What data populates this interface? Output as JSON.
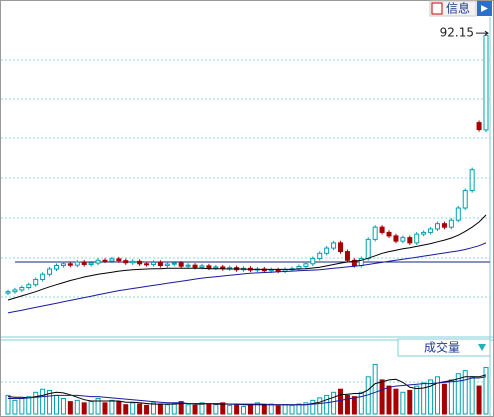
{
  "chart_data": {
    "type": "candlestick",
    "info_label": "信息",
    "volume_label": "成交量",
    "ylim": [
      5,
      96.5
    ],
    "up_color": "#00a0b0",
    "down_color": "#a80000",
    "reference_line": 26.5,
    "reference_color": "#1a237e",
    "open": [
      17.6,
      18.0,
      18.5,
      19.2,
      20.0,
      21.5,
      23.0,
      24.5,
      25.5,
      26.0,
      25.6,
      26.5,
      25.8,
      26.2,
      27.0,
      26.8,
      27.4,
      26.9,
      26.3,
      26.7,
      26.0,
      25.8,
      26.4,
      25.5,
      25.9,
      26.2,
      25.3,
      25.6,
      25.0,
      25.4,
      24.8,
      25.1,
      24.6,
      24.9,
      24.3,
      24.7,
      24.2,
      24.5,
      24.0,
      24.3,
      23.9,
      24.4,
      24.6,
      25.2,
      26.0,
      27.5,
      29.0,
      30.5,
      32.0,
      29.5,
      27.0,
      25.5,
      27.5,
      33.0,
      36.5,
      35.0,
      34.0,
      32.5,
      33.5,
      32.0,
      34.5,
      35.0,
      36.0,
      37.5,
      36.5,
      38.5,
      42.0,
      47.0,
      66.5,
      64.4
    ],
    "high": [
      18.6,
      19.1,
      19.8,
      20.6,
      22.1,
      23.6,
      25.1,
      26.1,
      26.6,
      26.6,
      27.1,
      27.1,
      26.8,
      27.6,
      27.6,
      28.0,
      28.0,
      27.5,
      27.3,
      27.3,
      26.6,
      27.0,
      27.0,
      26.5,
      26.8,
      26.8,
      26.2,
      26.2,
      26.0,
      26.0,
      25.7,
      25.7,
      25.5,
      25.5,
      25.3,
      25.3,
      25.1,
      25.1,
      24.9,
      24.9,
      25.0,
      25.2,
      25.8,
      26.6,
      28.1,
      29.6,
      31.1,
      32.6,
      32.6,
      30.1,
      27.6,
      28.1,
      33.6,
      37.1,
      37.1,
      35.6,
      34.6,
      34.1,
      34.1,
      35.1,
      35.6,
      36.6,
      38.1,
      38.1,
      39.1,
      42.6,
      47.6,
      53.6,
      67.1,
      92.15
    ],
    "low": [
      17.0,
      17.4,
      17.9,
      18.6,
      19.4,
      20.9,
      22.4,
      23.9,
      24.9,
      25.0,
      25.0,
      25.2,
      25.2,
      25.6,
      26.2,
      26.2,
      26.3,
      25.7,
      25.7,
      25.4,
      25.2,
      25.2,
      24.9,
      24.9,
      25.3,
      24.7,
      24.7,
      24.4,
      24.4,
      24.2,
      24.2,
      24.0,
      24.0,
      23.7,
      23.7,
      23.6,
      23.6,
      23.4,
      23.4,
      23.3,
      23.3,
      23.8,
      24.0,
      24.6,
      25.4,
      26.9,
      28.4,
      29.9,
      28.9,
      26.4,
      24.9,
      24.9,
      26.9,
      32.4,
      34.4,
      33.4,
      31.9,
      31.9,
      31.4,
      31.4,
      33.9,
      34.4,
      35.4,
      35.9,
      35.9,
      37.9,
      41.4,
      46.4,
      63.9,
      63.8
    ],
    "close": [
      18.0,
      18.5,
      19.2,
      20.0,
      21.5,
      23.0,
      24.5,
      25.5,
      26.0,
      25.6,
      26.5,
      25.8,
      26.2,
      27.0,
      26.8,
      27.4,
      26.9,
      26.3,
      26.7,
      26.0,
      25.8,
      26.4,
      25.5,
      25.9,
      26.2,
      25.3,
      25.6,
      25.0,
      25.4,
      24.8,
      25.1,
      24.6,
      24.9,
      24.3,
      24.7,
      24.2,
      24.5,
      24.0,
      24.3,
      23.9,
      24.4,
      24.6,
      25.2,
      26.0,
      27.5,
      29.0,
      30.5,
      32.0,
      29.5,
      27.0,
      25.5,
      27.5,
      33.0,
      36.5,
      35.0,
      34.0,
      32.5,
      33.5,
      32.0,
      34.5,
      35.0,
      36.0,
      37.5,
      36.5,
      38.5,
      42.0,
      47.0,
      53.0,
      64.5,
      91.5
    ],
    "lines": [
      {
        "color": "#000000",
        "values": [
          15.6,
          16.2,
          16.8,
          17.4,
          18.0,
          18.7,
          19.4,
          20.0,
          20.6,
          21.2,
          21.7,
          22.2,
          22.6,
          23.0,
          23.3,
          23.6,
          23.9,
          24.1,
          24.3,
          24.4,
          24.5,
          24.6,
          24.6,
          24.7,
          24.7,
          24.7,
          24.7,
          24.7,
          24.7,
          24.6,
          24.6,
          24.6,
          24.5,
          24.5,
          24.5,
          24.4,
          24.4,
          24.4,
          24.4,
          24.4,
          24.4,
          24.4,
          24.5,
          24.6,
          24.8,
          25.0,
          25.4,
          25.8,
          26.2,
          26.5,
          26.7,
          27.0,
          27.6,
          28.3,
          29.0,
          29.5,
          29.9,
          30.3,
          30.6,
          31.0,
          31.4,
          31.8,
          32.3,
          32.8,
          33.4,
          34.2,
          35.3,
          36.5,
          38.0,
          40.0
        ]
      },
      {
        "color": "#1a1aa0",
        "values": [
          11.9,
          12.3,
          12.7,
          13.1,
          13.5,
          13.9,
          14.3,
          14.7,
          15.1,
          15.5,
          15.9,
          16.3,
          16.7,
          17.1,
          17.5,
          17.9,
          18.3,
          18.6,
          18.9,
          19.2,
          19.5,
          19.8,
          20.1,
          20.4,
          20.7,
          21.0,
          21.3,
          21.6,
          21.9,
          22.1,
          22.3,
          22.5,
          22.7,
          22.9,
          23.1,
          23.3,
          23.4,
          23.5,
          23.6,
          23.7,
          23.8,
          23.9,
          24.0,
          24.1,
          24.2,
          24.3,
          24.5,
          24.7,
          24.9,
          25.1,
          25.3,
          25.5,
          25.8,
          26.1,
          26.4,
          26.7,
          27.0,
          27.3,
          27.6,
          27.9,
          28.2,
          28.5,
          28.8,
          29.1,
          29.4,
          29.7,
          30.1,
          30.6,
          31.2,
          32.0
        ]
      }
    ],
    "volume": {
      "ylim": [
        0,
        100
      ],
      "values": [
        30,
        22,
        25,
        28,
        35,
        40,
        38,
        30,
        25,
        20,
        22,
        18,
        20,
        25,
        18,
        22,
        20,
        15,
        18,
        16,
        14,
        18,
        16,
        15,
        17,
        20,
        15,
        14,
        18,
        16,
        15,
        18,
        14,
        16,
        12,
        15,
        18,
        14,
        16,
        13,
        15,
        14,
        16,
        18,
        22,
        26,
        30,
        35,
        40,
        30,
        28,
        35,
        60,
        80,
        55,
        45,
        40,
        35,
        38,
        45,
        50,
        55,
        60,
        48,
        55,
        65,
        70,
        60,
        45,
        75
      ],
      "lines": [
        {
          "color": "#000000",
          "values": [
            28,
            27,
            27,
            26,
            28,
            30,
            33,
            35,
            34,
            31,
            27,
            23,
            21,
            21,
            21,
            21,
            21,
            19,
            19,
            18,
            17,
            16,
            16,
            16,
            16,
            17,
            17,
            16,
            16,
            17,
            16,
            16,
            16,
            16,
            15,
            15,
            15,
            15,
            15,
            15,
            15,
            15,
            15,
            15,
            17,
            19,
            23,
            27,
            31,
            32,
            33,
            33,
            39,
            49,
            52,
            55,
            56,
            51,
            43,
            41,
            42,
            45,
            50,
            52,
            54,
            57,
            60,
            60,
            60,
            63
          ]
        },
        {
          "color": "#1a1aa0",
          "values": [
            25,
            25,
            25,
            26,
            27,
            28,
            29,
            30,
            30,
            30,
            30,
            29,
            28,
            28,
            27,
            26,
            25,
            24,
            23,
            22,
            21,
            20,
            19,
            18,
            18,
            18,
            17,
            17,
            17,
            17,
            17,
            17,
            16,
            16,
            16,
            16,
            16,
            16,
            15,
            15,
            15,
            15,
            15,
            15,
            16,
            17,
            18,
            20,
            22,
            24,
            26,
            28,
            31,
            35,
            39,
            43,
            45,
            46,
            47,
            48,
            49,
            49,
            50,
            51,
            52,
            53,
            55,
            58,
            58,
            60
          ]
        }
      ]
    }
  }
}
